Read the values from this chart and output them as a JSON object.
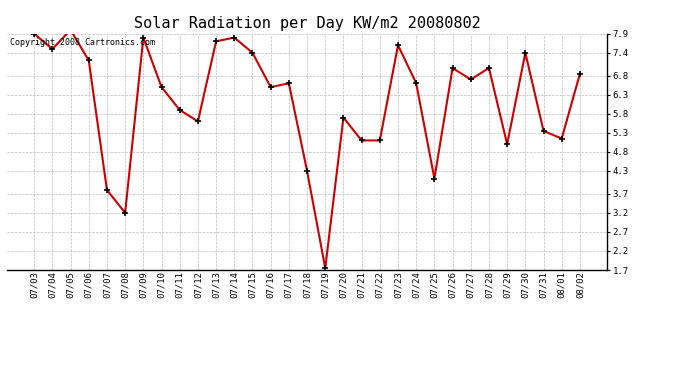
{
  "title": "Solar Radiation per Day KW/m2 20080802",
  "copyright_text": "Copyright 2008 Cartronics.com",
  "dates": [
    "07/03",
    "07/04",
    "07/05",
    "07/06",
    "07/07",
    "07/08",
    "07/09",
    "07/10",
    "07/11",
    "07/12",
    "07/13",
    "07/14",
    "07/15",
    "07/16",
    "07/17",
    "07/18",
    "07/19",
    "07/20",
    "07/21",
    "07/22",
    "07/23",
    "07/24",
    "07/25",
    "07/26",
    "07/27",
    "07/28",
    "07/29",
    "07/30",
    "07/31",
    "08/01",
    "08/02"
  ],
  "values": [
    7.9,
    7.5,
    8.0,
    7.2,
    3.8,
    3.2,
    7.8,
    6.5,
    5.9,
    5.6,
    7.7,
    7.8,
    7.4,
    6.5,
    6.6,
    4.3,
    1.75,
    5.7,
    5.1,
    5.1,
    7.6,
    6.6,
    4.1,
    7.0,
    6.7,
    7.0,
    5.0,
    7.4,
    5.35,
    5.15,
    6.85
  ],
  "line_color": "#cc0000",
  "marker_color": "#000000",
  "background_color": "#ffffff",
  "plot_bg_color": "#ffffff",
  "grid_color": "#bbbbbb",
  "ylim": [
    1.7,
    7.9
  ],
  "yticks": [
    1.7,
    2.2,
    2.7,
    3.2,
    3.7,
    4.3,
    4.8,
    5.3,
    5.8,
    6.3,
    6.8,
    7.4,
    7.9
  ],
  "title_fontsize": 11,
  "copyright_fontsize": 6,
  "tick_fontsize": 6.5,
  "line_width": 1.5,
  "marker_size": 5
}
